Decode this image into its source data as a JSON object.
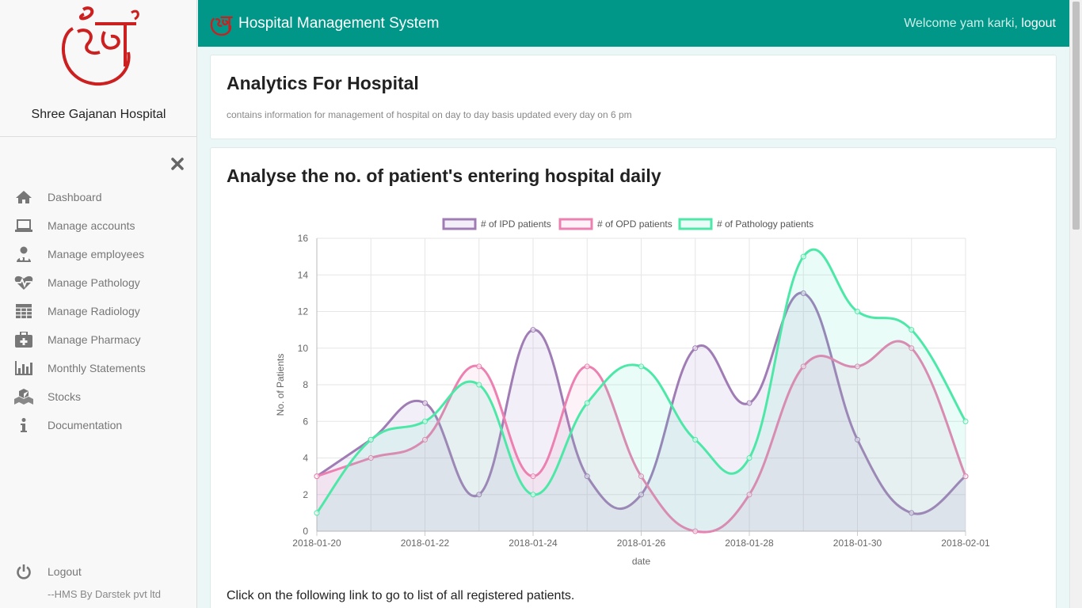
{
  "sidebar": {
    "hospital_name": "Shree Gajanan Hospital",
    "items": [
      {
        "label": "Dashboard",
        "icon": "home-icon"
      },
      {
        "label": "Manage accounts",
        "icon": "laptop-icon"
      },
      {
        "label": "Manage employees",
        "icon": "user-md-icon"
      },
      {
        "label": "Manage Pathology",
        "icon": "heartbeat-icon"
      },
      {
        "label": "Manage Radiology",
        "icon": "table-icon"
      },
      {
        "label": "Manage Pharmacy",
        "icon": "medkit-icon"
      },
      {
        "label": "Monthly Statements",
        "icon": "bar-chart-icon"
      },
      {
        "label": "Stocks",
        "icon": "cubes-icon"
      },
      {
        "label": "Documentation",
        "icon": "info-icon"
      }
    ],
    "logout_label": "Logout",
    "credit": "--HMS By Darstek pvt ltd"
  },
  "topbar": {
    "title": "Hospital Management System",
    "welcome": "Welcome yam karki,",
    "logout_link": "logout",
    "color": "#009688"
  },
  "intro": {
    "title": "Analytics For Hospital",
    "subtitle": "contains information for management of hospital on day to day basis updated every day on 6 pm"
  },
  "analysis": {
    "title": "Analyse the no. of patient's entering hospital daily",
    "footer_text": "Click on the following link to go to list of all registered patients."
  },
  "chart_data": {
    "type": "line",
    "xlabel": "date",
    "ylabel": "No. of Patients",
    "ylim": [
      0,
      16
    ],
    "y_ticks": [
      0,
      2,
      4,
      6,
      8,
      10,
      12,
      14,
      16
    ],
    "x": [
      "2018-01-20",
      "2018-01-21",
      "2018-01-22",
      "2018-01-23",
      "2018-01-24",
      "2018-01-25",
      "2018-01-26",
      "2018-01-27",
      "2018-01-28",
      "2018-01-29",
      "2018-01-30",
      "2018-01-31",
      "2018-02-01"
    ],
    "x_ticks": [
      "2018-01-20",
      "2018-01-22",
      "2018-01-24",
      "2018-01-26",
      "2018-01-28",
      "2018-01-30",
      "2018-02-01"
    ],
    "legend_position": "top",
    "grid": true,
    "series": [
      {
        "name": "# of IPD patients",
        "color": "#a07cb5",
        "fill": "rgba(160,124,200,0.12)",
        "values": [
          3,
          5,
          7,
          2,
          11,
          3,
          2,
          10,
          7,
          13,
          5,
          1,
          3
        ]
      },
      {
        "name": "# of OPD patients",
        "color": "#ec80b0",
        "fill": "rgba(236,128,176,0.10)",
        "values": [
          3,
          4,
          5,
          9,
          3,
          9,
          3,
          0,
          2,
          9,
          9,
          10,
          3
        ]
      },
      {
        "name": "# of Pathology patients",
        "color": "#4de8a8",
        "fill": "rgba(77,232,200,0.12)",
        "values": [
          1,
          5,
          6,
          8,
          2,
          7,
          9,
          5,
          4,
          15,
          12,
          11,
          6
        ]
      }
    ]
  }
}
